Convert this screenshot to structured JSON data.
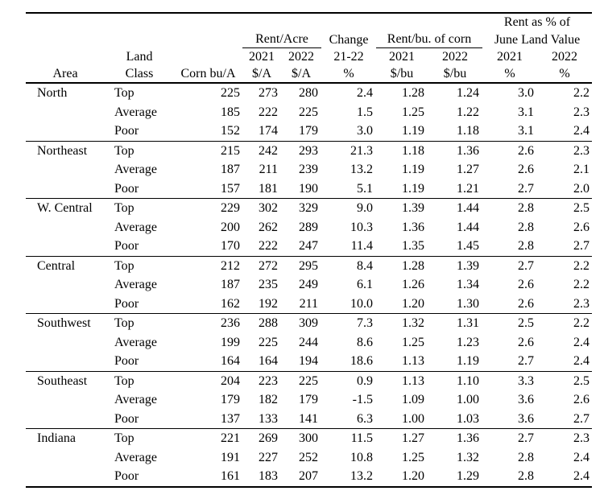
{
  "colors": {
    "background": "#ffffff",
    "text": "#000000",
    "rule": "#000000"
  },
  "table": {
    "header": {
      "rent_pct_line1": "Rent as % of",
      "group_rent_acre": "Rent/Acre",
      "group_change": "Change",
      "group_rent_bu": "Rent/bu. of corn",
      "rent_pct_line2": "June Land Value",
      "year_row": [
        "",
        "Land",
        "",
        "2021",
        "2022",
        "21-22",
        "2021",
        "2022",
        "2021",
        "2022"
      ],
      "unit_row": [
        "Area",
        "Class",
        "Corn bu/A",
        "$/A",
        "$/A",
        "%",
        "$/bu",
        "$/bu",
        "%",
        "%"
      ]
    },
    "groups": [
      {
        "area": "North",
        "rows": [
          {
            "land_class": "Top",
            "values": [
              "225",
              "273",
              "280",
              "2.4",
              "1.28",
              "1.24",
              "3.0",
              "2.2"
            ]
          },
          {
            "land_class": "Average",
            "values": [
              "185",
              "222",
              "225",
              "1.5",
              "1.25",
              "1.22",
              "3.1",
              "2.3"
            ]
          },
          {
            "land_class": "Poor",
            "values": [
              "152",
              "174",
              "179",
              "3.0",
              "1.19",
              "1.18",
              "3.1",
              "2.4"
            ]
          }
        ]
      },
      {
        "area": "Northeast",
        "rows": [
          {
            "land_class": "Top",
            "values": [
              "215",
              "242",
              "293",
              "21.3",
              "1.18",
              "1.36",
              "2.6",
              "2.3"
            ]
          },
          {
            "land_class": "Average",
            "values": [
              "187",
              "211",
              "239",
              "13.2",
              "1.19",
              "1.27",
              "2.6",
              "2.1"
            ]
          },
          {
            "land_class": "Poor",
            "values": [
              "157",
              "181",
              "190",
              "5.1",
              "1.19",
              "1.21",
              "2.7",
              "2.0"
            ]
          }
        ]
      },
      {
        "area": "W. Central",
        "rows": [
          {
            "land_class": "Top",
            "values": [
              "229",
              "302",
              "329",
              "9.0",
              "1.39",
              "1.44",
              "2.8",
              "2.5"
            ]
          },
          {
            "land_class": "Average",
            "values": [
              "200",
              "262",
              "289",
              "10.3",
              "1.36",
              "1.44",
              "2.8",
              "2.6"
            ]
          },
          {
            "land_class": "Poor",
            "values": [
              "170",
              "222",
              "247",
              "11.4",
              "1.35",
              "1.45",
              "2.8",
              "2.7"
            ]
          }
        ]
      },
      {
        "area": "Central",
        "rows": [
          {
            "land_class": "Top",
            "values": [
              "212",
              "272",
              "295",
              "8.4",
              "1.28",
              "1.39",
              "2.7",
              "2.2"
            ]
          },
          {
            "land_class": "Average",
            "values": [
              "187",
              "235",
              "249",
              "6.1",
              "1.26",
              "1.34",
              "2.6",
              "2.2"
            ]
          },
          {
            "land_class": "Poor",
            "values": [
              "162",
              "192",
              "211",
              "10.0",
              "1.20",
              "1.30",
              "2.6",
              "2.3"
            ]
          }
        ]
      },
      {
        "area": "Southwest",
        "rows": [
          {
            "land_class": "Top",
            "values": [
              "236",
              "288",
              "309",
              "7.3",
              "1.32",
              "1.31",
              "2.5",
              "2.2"
            ]
          },
          {
            "land_class": "Average",
            "values": [
              "199",
              "225",
              "244",
              "8.6",
              "1.25",
              "1.23",
              "2.6",
              "2.4"
            ]
          },
          {
            "land_class": "Poor",
            "values": [
              "164",
              "164",
              "194",
              "18.6",
              "1.13",
              "1.19",
              "2.7",
              "2.4"
            ]
          }
        ]
      },
      {
        "area": "Southeast",
        "rows": [
          {
            "land_class": "Top",
            "values": [
              "204",
              "223",
              "225",
              "0.9",
              "1.13",
              "1.10",
              "3.3",
              "2.5"
            ]
          },
          {
            "land_class": "Average",
            "values": [
              "179",
              "182",
              "179",
              "-1.5",
              "1.09",
              "1.00",
              "3.6",
              "2.6"
            ]
          },
          {
            "land_class": "Poor",
            "values": [
              "137",
              "133",
              "141",
              "6.3",
              "1.00",
              "1.03",
              "3.6",
              "2.7"
            ]
          }
        ]
      },
      {
        "area": "Indiana",
        "rows": [
          {
            "land_class": "Top",
            "values": [
              "221",
              "269",
              "300",
              "11.5",
              "1.27",
              "1.36",
              "2.7",
              "2.3"
            ]
          },
          {
            "land_class": "Average",
            "values": [
              "191",
              "227",
              "252",
              "10.8",
              "1.25",
              "1.32",
              "2.8",
              "2.4"
            ]
          },
          {
            "land_class": "Poor",
            "values": [
              "161",
              "183",
              "207",
              "13.2",
              "1.20",
              "1.29",
              "2.8",
              "2.4"
            ]
          }
        ]
      }
    ]
  }
}
